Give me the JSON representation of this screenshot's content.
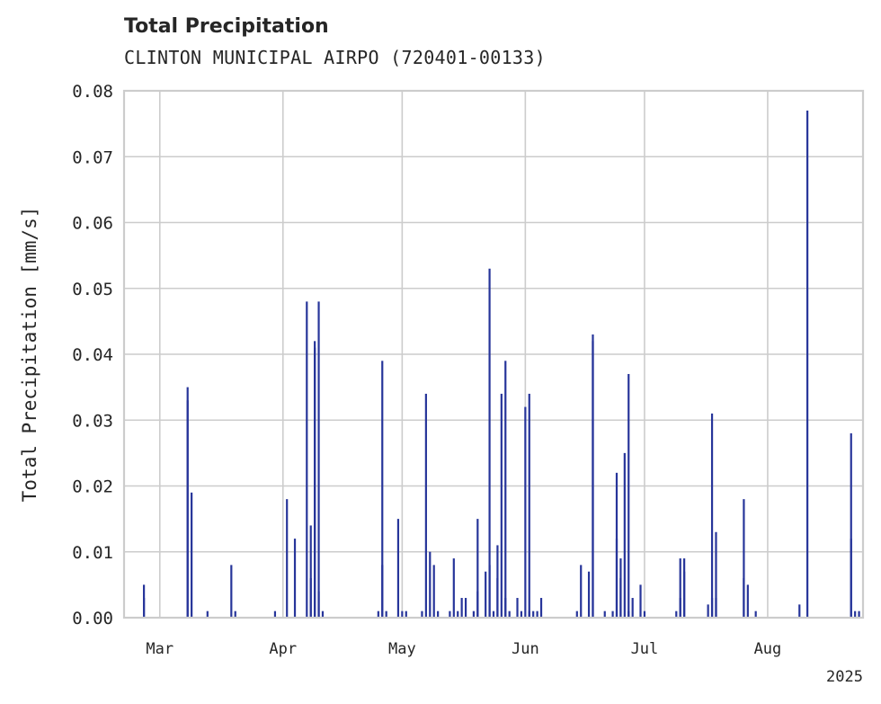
{
  "chart_data": {
    "type": "bar",
    "title": "Total Precipitation",
    "subtitle": "CLINTON MUNICIPAL AIRPO (720401-00133)",
    "ylabel": "Total Precipitation [mm/s]",
    "xlabel": "",
    "year_label": "2025",
    "ylim": [
      0,
      0.08
    ],
    "yticks": [
      "0.00",
      "0.01",
      "0.02",
      "0.03",
      "0.04",
      "0.05",
      "0.06",
      "0.07",
      "0.08"
    ],
    "xlim": [
      "2025-02-20",
      "2025-08-25"
    ],
    "xticks": [
      {
        "date": "2025-03-01",
        "label": "Mar"
      },
      {
        "date": "2025-04-01",
        "label": "Apr"
      },
      {
        "date": "2025-05-01",
        "label": "May"
      },
      {
        "date": "2025-06-01",
        "label": "Jun"
      },
      {
        "date": "2025-07-01",
        "label": "Jul"
      },
      {
        "date": "2025-08-01",
        "label": "Aug"
      }
    ],
    "grid": true,
    "bar_color": "#27359a",
    "points": [
      [
        "2025-02-25",
        0.003
      ],
      [
        "2025-02-25",
        0.005
      ],
      [
        "2025-03-08",
        0.035
      ],
      [
        "2025-03-08",
        0.033
      ],
      [
        "2025-03-09",
        0.019
      ],
      [
        "2025-03-13",
        0.001
      ],
      [
        "2025-03-19",
        0.008
      ],
      [
        "2025-03-20",
        0.001
      ],
      [
        "2025-03-30",
        0.001
      ],
      [
        "2025-04-02",
        0.018
      ],
      [
        "2025-04-04",
        0.012
      ],
      [
        "2025-04-07",
        0.048
      ],
      [
        "2025-04-08",
        0.014
      ],
      [
        "2025-04-08",
        0.006
      ],
      [
        "2025-04-09",
        0.041
      ],
      [
        "2025-04-09",
        0.042
      ],
      [
        "2025-04-10",
        0.048
      ],
      [
        "2025-04-10",
        0.004
      ],
      [
        "2025-04-11",
        0.001
      ],
      [
        "2025-04-25",
        0.001
      ],
      [
        "2025-04-26",
        0.039
      ],
      [
        "2025-04-26",
        0.008
      ],
      [
        "2025-04-27",
        0.001
      ],
      [
        "2025-04-30",
        0.015
      ],
      [
        "2025-05-01",
        0.001
      ],
      [
        "2025-05-02",
        0.001
      ],
      [
        "2025-05-06",
        0.001
      ],
      [
        "2025-05-07",
        0.034
      ],
      [
        "2025-05-08",
        0.01
      ],
      [
        "2025-05-09",
        0.008
      ],
      [
        "2025-05-10",
        0.001
      ],
      [
        "2025-05-13",
        0.001
      ],
      [
        "2025-05-14",
        0.009
      ],
      [
        "2025-05-15",
        0.001
      ],
      [
        "2025-05-16",
        0.003
      ],
      [
        "2025-05-17",
        0.003
      ],
      [
        "2025-05-19",
        0.001
      ],
      [
        "2025-05-20",
        0.015
      ],
      [
        "2025-05-20",
        0.004
      ],
      [
        "2025-05-22",
        0.007
      ],
      [
        "2025-05-23",
        0.008
      ],
      [
        "2025-05-23",
        0.053
      ],
      [
        "2025-05-24",
        0.001
      ],
      [
        "2025-05-25",
        0.006
      ],
      [
        "2025-05-25",
        0.011
      ],
      [
        "2025-05-26",
        0.034
      ],
      [
        "2025-05-27",
        0.003
      ],
      [
        "2025-05-27",
        0.039
      ],
      [
        "2025-05-28",
        0.001
      ],
      [
        "2025-05-30",
        0.003
      ],
      [
        "2025-05-31",
        0.001
      ],
      [
        "2025-06-01",
        0.032
      ],
      [
        "2025-06-02",
        0.001
      ],
      [
        "2025-06-02",
        0.034
      ],
      [
        "2025-06-03",
        0.001
      ],
      [
        "2025-06-04",
        0.001
      ],
      [
        "2025-06-05",
        0.003
      ],
      [
        "2025-06-14",
        0.001
      ],
      [
        "2025-06-15",
        0.008
      ],
      [
        "2025-06-17",
        0.007
      ],
      [
        "2025-06-18",
        0.042
      ],
      [
        "2025-06-18",
        0.043
      ],
      [
        "2025-06-21",
        0.001
      ],
      [
        "2025-06-23",
        0.001
      ],
      [
        "2025-06-24",
        0.012
      ],
      [
        "2025-06-24",
        0.022
      ],
      [
        "2025-06-25",
        0.009
      ],
      [
        "2025-06-25",
        0.006
      ],
      [
        "2025-06-26",
        0.025
      ],
      [
        "2025-06-27",
        0.001
      ],
      [
        "2025-06-27",
        0.037
      ],
      [
        "2025-06-28",
        0.003
      ],
      [
        "2025-06-30",
        0.005
      ],
      [
        "2025-07-01",
        0.001
      ],
      [
        "2025-07-09",
        0.001
      ],
      [
        "2025-07-10",
        0.003
      ],
      [
        "2025-07-10",
        0.009
      ],
      [
        "2025-07-11",
        0.009
      ],
      [
        "2025-07-11",
        0.007
      ],
      [
        "2025-07-17",
        0.002
      ],
      [
        "2025-07-18",
        0.031
      ],
      [
        "2025-07-18",
        0.003
      ],
      [
        "2025-07-19",
        0.003
      ],
      [
        "2025-07-19",
        0.013
      ],
      [
        "2025-07-26",
        0.018
      ],
      [
        "2025-07-26",
        0.006
      ],
      [
        "2025-07-27",
        0.005
      ],
      [
        "2025-07-29",
        0.001
      ],
      [
        "2025-08-09",
        0.002
      ],
      [
        "2025-08-11",
        0.077
      ],
      [
        "2025-08-22",
        0.012
      ],
      [
        "2025-08-22",
        0.028
      ],
      [
        "2025-08-23",
        0.001
      ],
      [
        "2025-08-24",
        0.001
      ]
    ]
  }
}
